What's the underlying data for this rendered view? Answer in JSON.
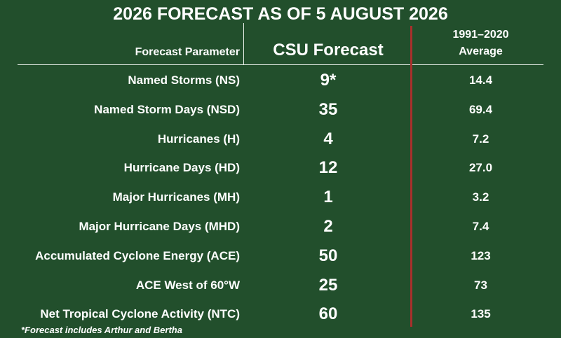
{
  "title": "2026 FORECAST AS OF 5 AUGUST 2026",
  "headers": {
    "parameter": "Forecast Parameter",
    "forecast": "CSU Forecast",
    "average_line1": "1991–2020",
    "average_line2": "Average"
  },
  "rows": [
    {
      "parameter": "Named Storms (NS)",
      "forecast": "9*",
      "average": "14.4"
    },
    {
      "parameter": "Named Storm Days (NSD)",
      "forecast": "35",
      "average": "69.4"
    },
    {
      "parameter": "Hurricanes (H)",
      "forecast": "4",
      "average": "7.2"
    },
    {
      "parameter": "Hurricane Days (HD)",
      "forecast": "12",
      "average": "27.0"
    },
    {
      "parameter": "Major Hurricanes (MH)",
      "forecast": "1",
      "average": "3.2"
    },
    {
      "parameter": "Major Hurricane Days (MHD)",
      "forecast": "2",
      "average": "7.4"
    },
    {
      "parameter": "Accumulated Cyclone Energy (ACE)",
      "forecast": "50",
      "average": "123"
    },
    {
      "parameter": "ACE West of 60°W",
      "forecast": "25",
      "average": "73"
    },
    {
      "parameter": "Net Tropical Cyclone Activity (NTC)",
      "forecast": "60",
      "average": "135"
    }
  ],
  "footnote": "*Forecast includes Arthur and Bertha",
  "colors": {
    "background": "#224f2c",
    "divider": "#a8302c",
    "text": "#ffffff"
  }
}
